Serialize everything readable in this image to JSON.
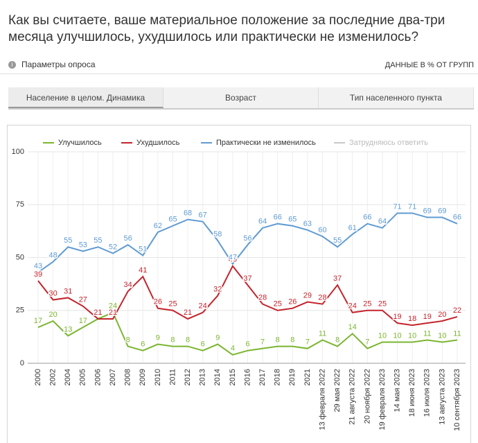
{
  "header": {
    "question": "Как вы считаете, ваше материальное положение за последние два-три месяца улучшилось, ухудшилось или практически не изменилось?",
    "params": "Параметры опроса",
    "data_note": "ДАННЫЕ В % ОТ ГРУПП"
  },
  "tabs": [
    "Население в целом. Динамика",
    "Возраст",
    "Тип населенного пункта"
  ],
  "chart_data": {
    "type": "line",
    "categories": [
      "2000",
      "2002",
      "2004",
      "2005",
      "2006",
      "2007",
      "2008",
      "2009",
      "2010",
      "2011",
      "2012",
      "2013",
      "2014",
      "2015",
      "2016",
      "2017",
      "2018",
      "2019",
      "2021",
      "13 февраля 2022",
      "29 мая 2022",
      "21 августа 2022",
      "20 ноября 2022",
      "19 февраля 2023",
      "14 мая 2023",
      "18 июня 2023",
      "16 июля 2023",
      "13 августа 2023",
      "10 сентября 2023"
    ],
    "series": [
      {
        "name": "Улучшилось",
        "color": "#7ab52f",
        "values": [
          17,
          20,
          13,
          17,
          21,
          24,
          8,
          6,
          9,
          8,
          8,
          6,
          9,
          4,
          6,
          7,
          8,
          8,
          7,
          11,
          8,
          14,
          7,
          10,
          10,
          10,
          11,
          10,
          11
        ]
      },
      {
        "name": "Ухудшилось",
        "color": "#c4232b",
        "values": [
          39,
          30,
          31,
          27,
          21,
          21,
          34,
          41,
          26,
          25,
          21,
          24,
          32,
          46,
          37,
          28,
          25,
          26,
          29,
          28,
          37,
          24,
          25,
          25,
          19,
          18,
          19,
          20,
          22
        ]
      },
      {
        "name": "Практически не изменилось",
        "color": "#5f9bd2",
        "values": [
          43,
          48,
          55,
          53,
          55,
          52,
          56,
          51,
          62,
          65,
          68,
          67,
          58,
          47,
          56,
          64,
          66,
          65,
          63,
          60,
          55,
          61,
          66,
          64,
          71,
          71,
          69,
          69,
          66
        ]
      },
      {
        "name": "Затрудняюсь ответить",
        "color": "#c8c8c8",
        "visible": false
      }
    ],
    "ylim": [
      0,
      100
    ],
    "yticks": [
      0,
      25,
      50,
      75,
      100
    ],
    "grid": true
  }
}
